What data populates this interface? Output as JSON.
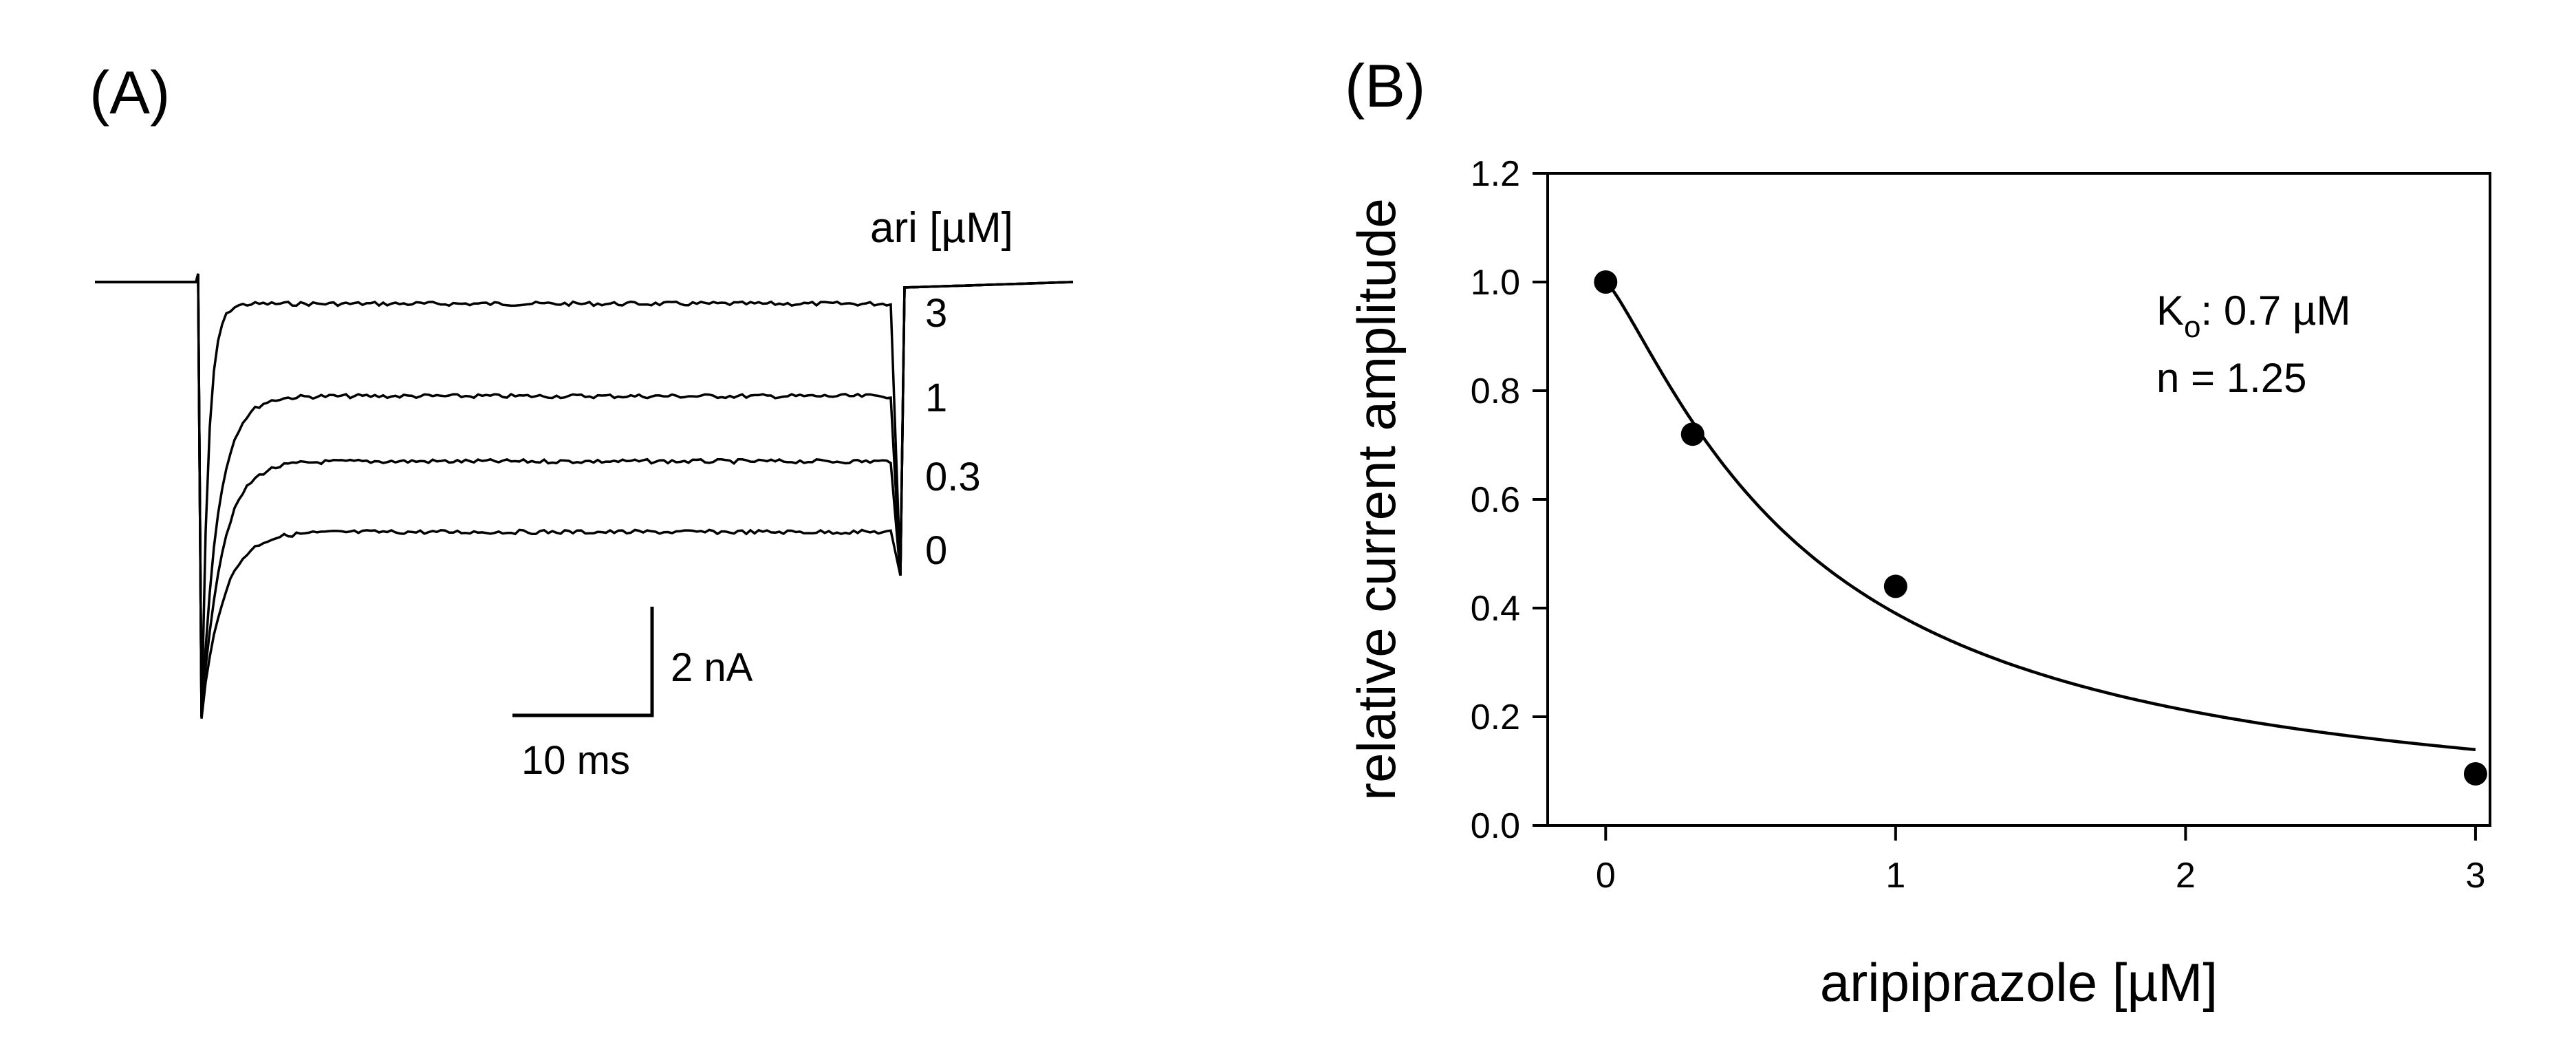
{
  "figure": {
    "panel_a_label": "(A)",
    "panel_b_label": "(B)"
  },
  "panel_a": {
    "legend_title": "ari [µM]",
    "traces": [
      {
        "label": "3",
        "conc": 3,
        "peak_nA": -8.0,
        "sustained_nA": -0.4
      },
      {
        "label": "1",
        "conc": 1,
        "peak_nA": -8.0,
        "sustained_nA": -2.1
      },
      {
        "label": "0.3",
        "conc": 0.3,
        "peak_nA": -8.0,
        "sustained_nA": -3.3
      },
      {
        "label": "0",
        "conc": 0,
        "peak_nA": -8.0,
        "sustained_nA": -4.6
      }
    ],
    "scale_bar": {
      "current_label": "2 nA",
      "time_label": "10 ms"
    }
  },
  "chart_data": {
    "type": "scatter",
    "title": "",
    "xlabel": "aripiprazole [µM]",
    "ylabel": "relative current amplitude",
    "xlim": [
      -0.2,
      3.05
    ],
    "ylim": [
      0.0,
      1.2
    ],
    "xticks": [
      0,
      1,
      2,
      3
    ],
    "yticks": [
      0.0,
      0.2,
      0.4,
      0.6,
      0.8,
      1.0,
      1.2
    ],
    "ytick_labels": [
      "0.0",
      "0.2",
      "0.4",
      "0.6",
      "0.8",
      "1.0",
      "1.2"
    ],
    "grid": false,
    "series": [
      {
        "name": "data",
        "x": [
          0,
          0.3,
          1,
          3
        ],
        "y": [
          1.0,
          0.72,
          0.44,
          0.095
        ]
      },
      {
        "name": "fit",
        "model": "hill",
        "ko": 0.7,
        "n": 1.25,
        "x_range": [
          0,
          3
        ]
      }
    ],
    "annotations": {
      "ko_label": "K",
      "ko_sub": "o",
      "ko_value": ": 0.7 µM",
      "n_text": "n = 1.25"
    }
  }
}
